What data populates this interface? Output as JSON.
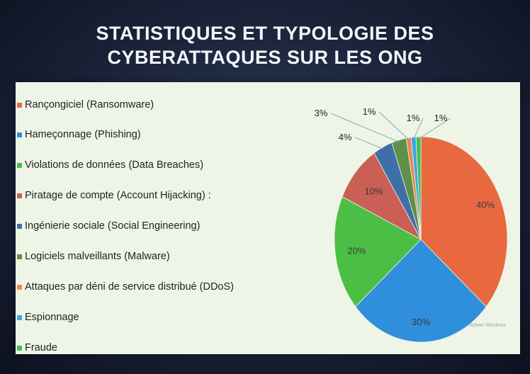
{
  "title_lines": [
    "STATISTIQUES ET TYPOLOGIE DES",
    "CYBERATTAQUES SUR LES ONG"
  ],
  "watermark": "Activer Windows",
  "chart_data": {
    "type": "pie",
    "title": "STATISTIQUES ET TYPOLOGIE DES CYBERATTAQUES SUR LES ONG",
    "legend_position": "left",
    "categories": [
      "Rançongiciel (Ransomware)",
      "Hameçonnage (Phishing)",
      "Violations de données (Data Breaches)",
      "Piratage de compte (Account Hijacking) :",
      "Ingénierie sociale (Social Engineering)",
      "Logiciels malveillants (Malware)",
      "Attaques par déni de service distribué (DDoS)",
      "Espionnage",
      "Fraude"
    ],
    "values": [
      40,
      30,
      20,
      10,
      4,
      3,
      1,
      1,
      1
    ],
    "labels": [
      "40%",
      "30%",
      "20%",
      "10%",
      "4%",
      "3%",
      "1%",
      "1%",
      "1%"
    ],
    "colors": [
      "#e8693f",
      "#2f8fdc",
      "#4bbf45",
      "#c95f55",
      "#3f6fa8",
      "#5f8f48",
      "#e98a4f",
      "#39a9e6",
      "#3fc04f"
    ]
  }
}
